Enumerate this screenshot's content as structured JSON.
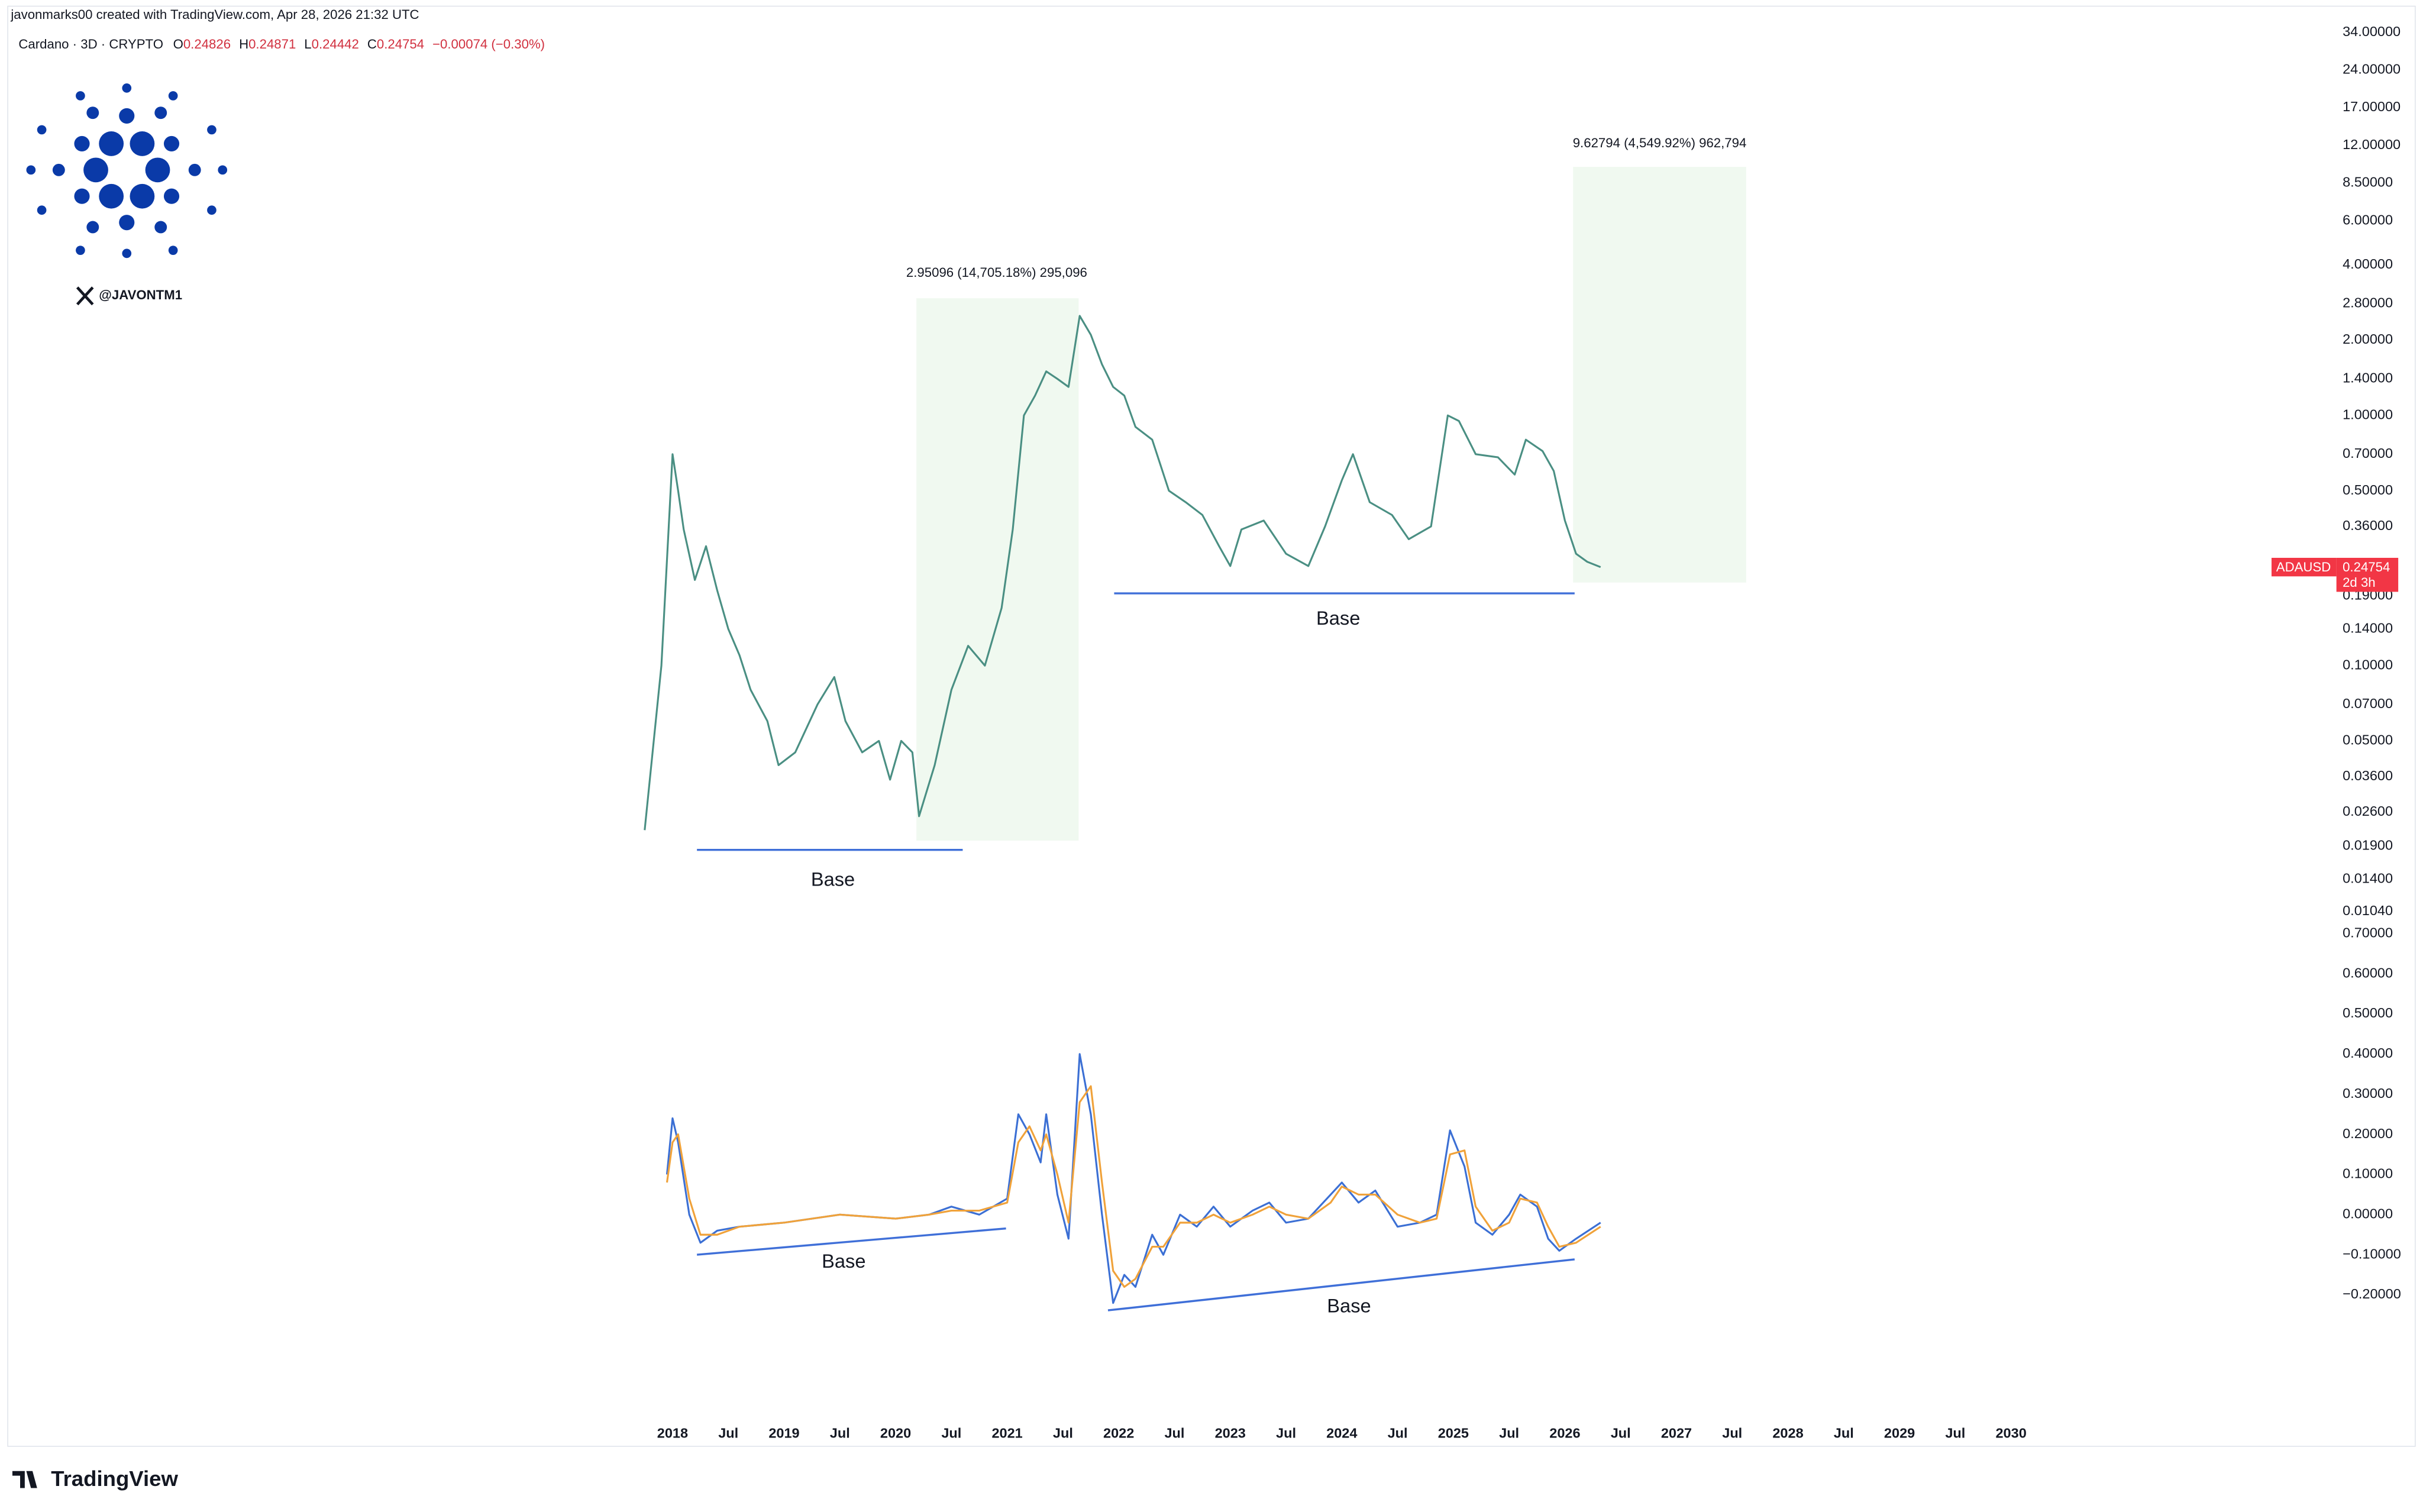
{
  "header": {
    "attribution": "javonmarks00 created with TradingView.com, Apr 28, 2026 21:32 UTC",
    "symbol": "Cardano · 3D · CRYPTO",
    "ohlc": [
      {
        "label": "O",
        "value": "0.24826"
      },
      {
        "label": "H",
        "value": "0.24871"
      },
      {
        "label": "L",
        "value": "0.24442"
      },
      {
        "label": "C",
        "value": "0.24754"
      }
    ],
    "change": "−0.00074 (−0.30%)"
  },
  "watermark": {
    "handle": "@JAVONTM1"
  },
  "price_tag": {
    "countdown": "2d 3h"
  },
  "footer": {
    "brand": "TradingView"
  },
  "chart_data": [
    {
      "type": "line",
      "ylog": true,
      "xlim": [
        2012.04,
        2032.82
      ],
      "ylim": [
        0.0094,
        37.5
      ],
      "yticks": [
        {
          "value": 34,
          "label": "34.00000"
        },
        {
          "value": 24,
          "label": "24.00000"
        },
        {
          "value": 17,
          "label": "17.00000"
        },
        {
          "value": 12,
          "label": "12.00000"
        },
        {
          "value": 8.5,
          "label": "8.50000"
        },
        {
          "value": 6,
          "label": "6.00000"
        },
        {
          "value": 4,
          "label": "4.00000"
        },
        {
          "value": 2.8,
          "label": "2.80000"
        },
        {
          "value": 2,
          "label": "2.00000"
        },
        {
          "value": 1.4,
          "label": "1.40000"
        },
        {
          "value": 1,
          "label": "1.00000"
        },
        {
          "value": 0.7,
          "label": "0.70000"
        },
        {
          "value": 0.5,
          "label": "0.50000"
        },
        {
          "value": 0.36,
          "label": "0.36000"
        },
        {
          "value": 0.19,
          "label": "0.19000"
        },
        {
          "value": 0.14,
          "label": "0.14000"
        },
        {
          "value": 0.1,
          "label": "0.10000"
        },
        {
          "value": 0.07,
          "label": "0.07000"
        },
        {
          "value": 0.05,
          "label": "0.05000"
        },
        {
          "value": 0.036,
          "label": "0.03600"
        },
        {
          "value": 0.026,
          "label": "0.02600"
        },
        {
          "value": 0.019,
          "label": "0.01900"
        },
        {
          "value": 0.014,
          "label": "0.01400"
        },
        {
          "value": 0.0104,
          "label": "0.01040"
        }
      ],
      "x": [
        2017.75,
        2017.9,
        2018.0,
        2018.05,
        2018.1,
        2018.2,
        2018.3,
        2018.4,
        2018.5,
        2018.6,
        2018.7,
        2018.85,
        2018.95,
        2019.1,
        2019.3,
        2019.45,
        2019.55,
        2019.7,
        2019.85,
        2019.95,
        2020.05,
        2020.15,
        2020.21,
        2020.35,
        2020.5,
        2020.65,
        2020.8,
        2020.95,
        2021.05,
        2021.15,
        2021.25,
        2021.35,
        2021.45,
        2021.55,
        2021.65,
        2021.75,
        2021.85,
        2021.95,
        2022.05,
        2022.15,
        2022.3,
        2022.45,
        2022.6,
        2022.75,
        2022.9,
        2023.0,
        2023.1,
        2023.3,
        2023.5,
        2023.7,
        2023.85,
        2024.0,
        2024.1,
        2024.25,
        2024.45,
        2024.6,
        2024.8,
        2024.95,
        2025.05,
        2025.2,
        2025.4,
        2025.55,
        2025.65,
        2025.8,
        2025.9,
        2026.0,
        2026.1,
        2026.2,
        2026.32
      ],
      "series": [
        {
          "name": "ADAUSD",
          "color": "#4a8f83",
          "values": [
            0.022,
            0.1,
            0.7,
            0.5,
            0.35,
            0.22,
            0.3,
            0.2,
            0.14,
            0.11,
            0.08,
            0.06,
            0.04,
            0.045,
            0.07,
            0.09,
            0.06,
            0.045,
            0.05,
            0.035,
            0.05,
            0.045,
            0.025,
            0.04,
            0.08,
            0.12,
            0.1,
            0.17,
            0.35,
            1.0,
            1.2,
            1.5,
            1.4,
            1.3,
            2.5,
            2.1,
            1.6,
            1.3,
            1.2,
            0.9,
            0.8,
            0.5,
            0.45,
            0.4,
            0.3,
            0.25,
            0.35,
            0.38,
            0.28,
            0.25,
            0.36,
            0.55,
            0.7,
            0.45,
            0.4,
            0.32,
            0.36,
            1.0,
            0.95,
            0.7,
            0.68,
            0.58,
            0.8,
            0.72,
            0.6,
            0.38,
            0.28,
            0.26,
            0.24754
          ]
        }
      ],
      "annotations": [
        "2.95096 (14,705.18%) 295,096",
        "9.62794 (4,549.92%) 962,794",
        "Base",
        "Base"
      ]
    },
    {
      "type": "line",
      "xlim": [
        2012.04,
        2032.82
      ],
      "ylim": [
        -0.3,
        0.72
      ],
      "yticks": [
        {
          "value": 0.7,
          "label": "0.70000"
        },
        {
          "value": 0.6,
          "label": "0.60000"
        },
        {
          "value": 0.5,
          "label": "0.50000"
        },
        {
          "value": 0.4,
          "label": "0.40000"
        },
        {
          "value": 0.3,
          "label": "0.30000"
        },
        {
          "value": 0.2,
          "label": "0.20000"
        },
        {
          "value": 0.1,
          "label": "0.10000"
        },
        {
          "value": 0,
          "label": "0.00000"
        },
        {
          "value": -0.1,
          "label": "−0.10000"
        },
        {
          "value": -0.2,
          "label": "−0.20000"
        }
      ],
      "xticks": [
        2018,
        {
          "value": 2018.5,
          "label": "Jul"
        },
        2019,
        {
          "value": 2019.5,
          "label": "Jul"
        },
        2020,
        {
          "value": 2020.5,
          "label": "Jul"
        },
        2021,
        {
          "value": 2021.5,
          "label": "Jul"
        },
        2022,
        {
          "value": 2022.5,
          "label": "Jul"
        },
        2023,
        {
          "value": 2023.5,
          "label": "Jul"
        },
        2024,
        {
          "value": 2024.5,
          "label": "Jul"
        },
        2025,
        {
          "value": 2025.5,
          "label": "Jul"
        },
        2026,
        {
          "value": 2026.5,
          "label": "Jul"
        },
        2027,
        {
          "value": 2027.5,
          "label": "Jul"
        },
        2028,
        {
          "value": 2028.5,
          "label": "Jul"
        },
        2029,
        {
          "value": 2029.5,
          "label": "Jul"
        },
        2030
      ],
      "x": [
        2017.95,
        2018.0,
        2018.05,
        2018.15,
        2018.25,
        2018.4,
        2018.6,
        2019.0,
        2019.5,
        2020.0,
        2020.3,
        2020.5,
        2020.75,
        2021.0,
        2021.1,
        2021.2,
        2021.3,
        2021.35,
        2021.45,
        2021.55,
        2021.65,
        2021.75,
        2021.85,
        2021.95,
        2022.05,
        2022.15,
        2022.3,
        2022.4,
        2022.55,
        2022.7,
        2022.85,
        2023.0,
        2023.2,
        2023.35,
        2023.5,
        2023.7,
        2023.9,
        2024.0,
        2024.15,
        2024.3,
        2024.5,
        2024.7,
        2024.85,
        2024.97,
        2025.1,
        2025.2,
        2025.35,
        2025.5,
        2025.6,
        2025.75,
        2025.85,
        2025.95,
        2026.1,
        2026.32
      ],
      "series": [
        {
          "color": "#3b6fd4",
          "values": [
            0.1,
            0.24,
            0.18,
            0.0,
            -0.07,
            -0.04,
            -0.03,
            -0.02,
            0.0,
            -0.01,
            0.0,
            0.02,
            0.0,
            0.04,
            0.25,
            0.2,
            0.13,
            0.25,
            0.05,
            -0.06,
            0.4,
            0.25,
            0.0,
            -0.22,
            -0.15,
            -0.18,
            -0.05,
            -0.1,
            0.0,
            -0.03,
            0.02,
            -0.03,
            0.01,
            0.03,
            -0.02,
            -0.01,
            0.05,
            0.08,
            0.03,
            0.06,
            -0.03,
            -0.02,
            0.0,
            0.21,
            0.12,
            -0.02,
            -0.05,
            0.0,
            0.05,
            0.02,
            -0.06,
            -0.09,
            -0.06,
            -0.02
          ]
        },
        {
          "color": "#f0a23a",
          "values": [
            0.08,
            0.18,
            0.2,
            0.04,
            -0.05,
            -0.05,
            -0.03,
            -0.02,
            0.0,
            -0.01,
            0.0,
            0.01,
            0.01,
            0.03,
            0.18,
            0.22,
            0.16,
            0.2,
            0.1,
            -0.02,
            0.28,
            0.32,
            0.08,
            -0.14,
            -0.18,
            -0.16,
            -0.08,
            -0.08,
            -0.02,
            -0.02,
            0.0,
            -0.02,
            0.0,
            0.02,
            0.0,
            -0.01,
            0.03,
            0.07,
            0.05,
            0.05,
            0.0,
            -0.02,
            -0.01,
            0.15,
            0.16,
            0.02,
            -0.04,
            -0.02,
            0.04,
            0.03,
            -0.03,
            -0.08,
            -0.07,
            -0.03
          ]
        }
      ],
      "annotations": [
        "Base",
        "Base"
      ]
    }
  ]
}
